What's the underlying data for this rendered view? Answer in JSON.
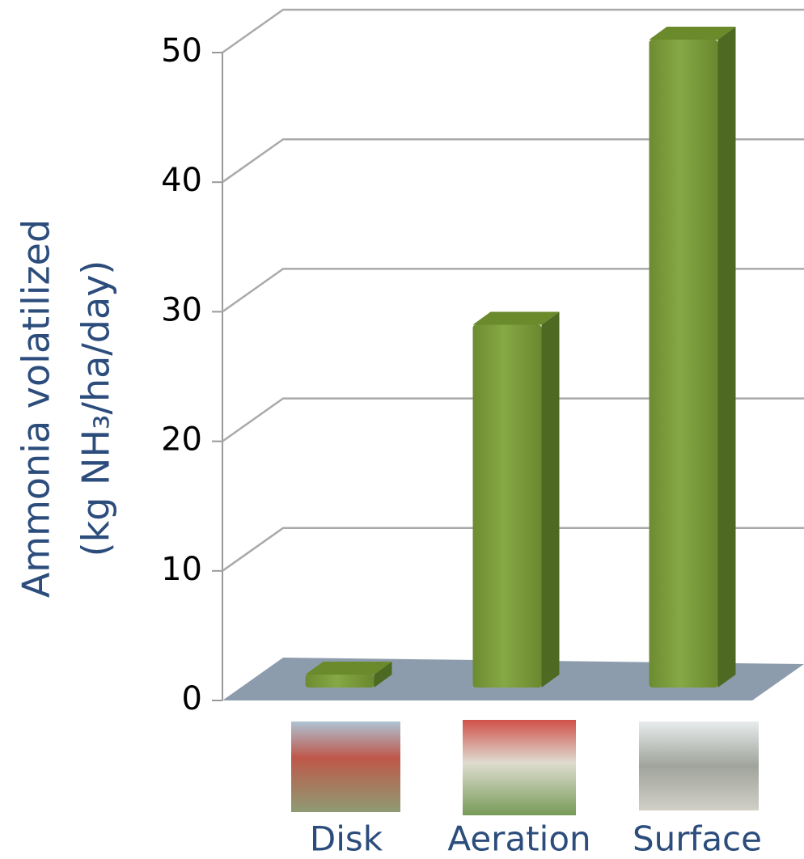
{
  "chart_data": {
    "type": "bar3d",
    "ylabel": [
      "Ammonia volatilized",
      "(kg NH₃/ha/day)"
    ],
    "categories": [
      "Disk",
      "Aeration",
      "Surface"
    ],
    "values": [
      1,
      28,
      50
    ],
    "color": "#7b9c3a",
    "ylim": [
      0,
      50
    ],
    "yticks": [
      0,
      10,
      20,
      30,
      40,
      50
    ],
    "grid": true
  }
}
